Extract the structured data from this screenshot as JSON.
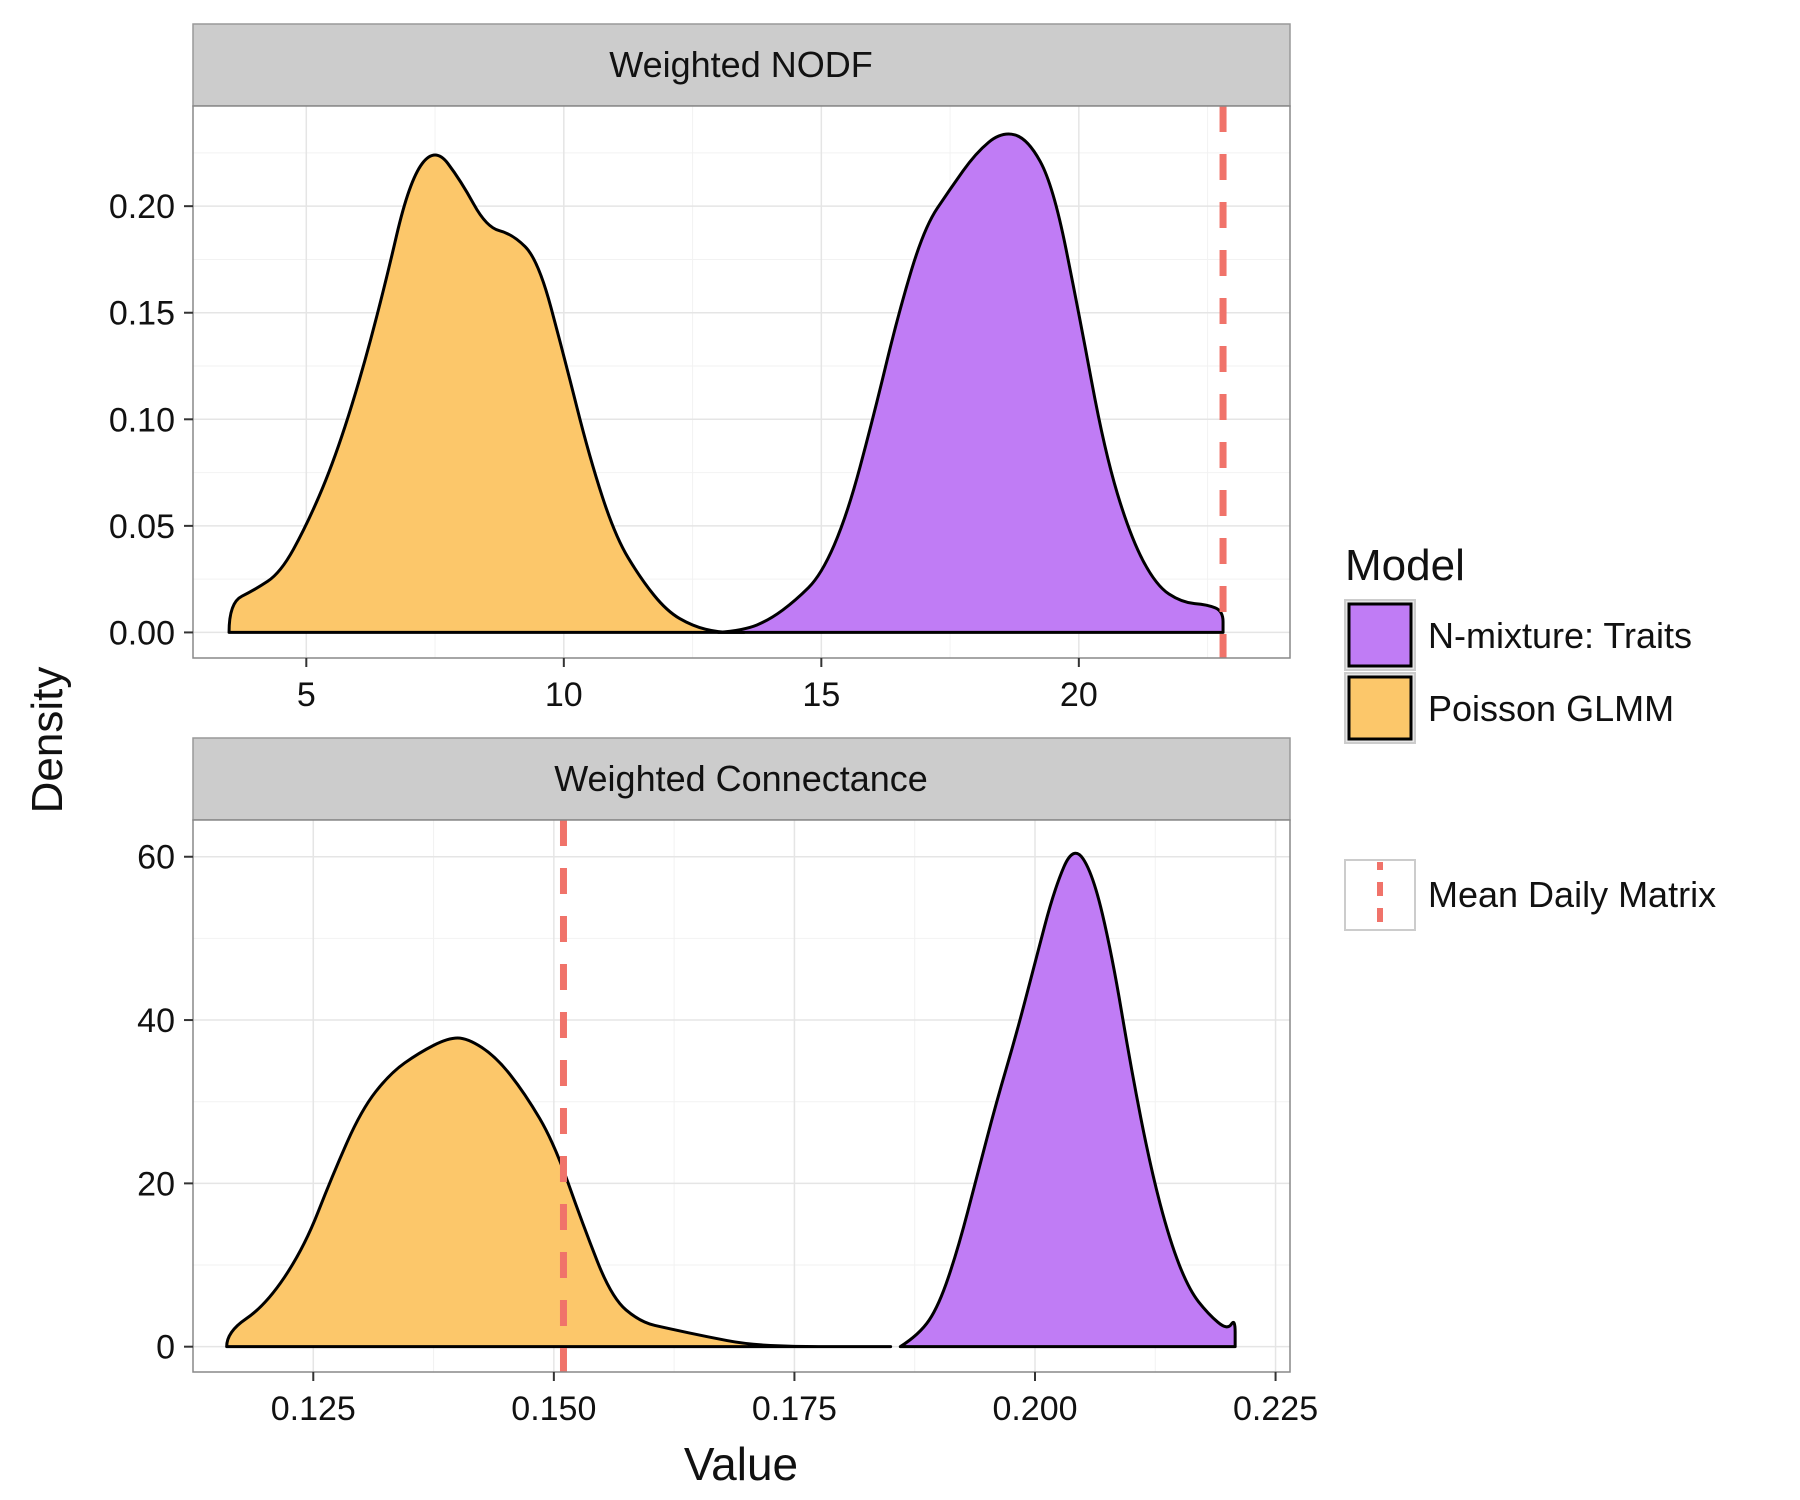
{
  "axis": {
    "xlabel": "Value",
    "ylabel": "Density"
  },
  "legend": {
    "title": "Model",
    "position": "right",
    "entries": [
      {
        "name": "N-mixture: Traits",
        "color": "#c07cf5"
      },
      {
        "name": "Poisson GLMM",
        "color": "#fcc76a"
      }
    ],
    "line_entry": {
      "name": "Mean Daily Matrix",
      "color": "#f0736a",
      "style": "dashed"
    }
  },
  "chart_data": [
    {
      "type": "area",
      "title": "Weighted NODF",
      "xlim": [
        2.8,
        24.1
      ],
      "ylim": [
        -0.012,
        0.247
      ],
      "x_ticks": [
        5,
        10,
        15,
        20
      ],
      "x_tick_labels": [
        "5",
        "10",
        "15",
        "20"
      ],
      "y_ticks": [
        0.0,
        0.05,
        0.1,
        0.15,
        0.2
      ],
      "y_tick_labels": [
        "0.00",
        "0.05",
        "0.10",
        "0.15",
        "0.20"
      ],
      "grid": true,
      "reference_line": {
        "name": "Mean Daily Matrix",
        "x": 22.8
      },
      "series": [
        {
          "name": "Poisson GLMM",
          "color": "#fcc76a",
          "x": [
            3.5,
            3.5,
            4.0,
            4.5,
            5.0,
            5.5,
            6.0,
            6.5,
            7.0,
            7.5,
            8.0,
            8.5,
            9.0,
            9.5,
            10.0,
            10.5,
            11.0,
            11.5,
            12.0,
            12.5,
            13.0,
            13.5
          ],
          "y": [
            0.0,
            0.014,
            0.02,
            0.028,
            0.05,
            0.078,
            0.115,
            0.16,
            0.212,
            0.228,
            0.212,
            0.19,
            0.187,
            0.175,
            0.13,
            0.082,
            0.045,
            0.025,
            0.01,
            0.003,
            0.0,
            0.0
          ]
        },
        {
          "name": "N-mixture: Traits",
          "color": "#c07cf5",
          "x": [
            13.0,
            13.5,
            14.0,
            14.5,
            15.0,
            15.5,
            16.0,
            16.5,
            17.0,
            17.5,
            18.0,
            18.5,
            19.0,
            19.5,
            20.0,
            20.5,
            21.0,
            21.5,
            22.0,
            22.5,
            22.8,
            22.8
          ],
          "y": [
            0.0,
            0.001,
            0.006,
            0.015,
            0.027,
            0.055,
            0.1,
            0.15,
            0.19,
            0.208,
            0.225,
            0.235,
            0.232,
            0.21,
            0.15,
            0.085,
            0.045,
            0.022,
            0.014,
            0.013,
            0.01,
            0.0
          ]
        }
      ]
    },
    {
      "type": "area",
      "title": "Weighted Connectance",
      "xlim": [
        0.1125,
        0.2265
      ],
      "ylim": [
        -3.1,
        64.5
      ],
      "x_ticks": [
        0.125,
        0.15,
        0.175,
        0.2,
        0.225
      ],
      "x_tick_labels": [
        "0.125",
        "0.150",
        "0.175",
        "0.200",
        "0.225"
      ],
      "y_ticks": [
        0,
        20,
        40,
        60
      ],
      "y_tick_labels": [
        "0",
        "20",
        "40",
        "60"
      ],
      "grid": true,
      "reference_line": {
        "name": "Mean Daily Matrix",
        "x": 0.151
      },
      "series": [
        {
          "name": "Poisson GLMM",
          "color": "#fcc76a",
          "x": [
            0.116,
            0.116,
            0.12,
            0.124,
            0.127,
            0.13,
            0.133,
            0.136,
            0.139,
            0.141,
            0.144,
            0.147,
            0.15,
            0.153,
            0.156,
            0.159,
            0.162,
            0.166,
            0.17,
            0.175,
            0.18,
            0.185
          ],
          "y": [
            0.0,
            1.8,
            5.0,
            12.0,
            21.0,
            29.0,
            33.5,
            36.0,
            37.8,
            37.8,
            35.5,
            31.0,
            25.0,
            15.0,
            6.0,
            3.0,
            2.2,
            1.2,
            0.3,
            0.0,
            0.0,
            0.0
          ]
        },
        {
          "name": "N-mixture: Traits",
          "color": "#c07cf5",
          "x": [
            0.186,
            0.188,
            0.19,
            0.192,
            0.194,
            0.196,
            0.198,
            0.2,
            0.202,
            0.204,
            0.206,
            0.208,
            0.21,
            0.212,
            0.214,
            0.216,
            0.218,
            0.22,
            0.2208,
            0.2208
          ],
          "y": [
            0.0,
            1.5,
            5.0,
            12.0,
            21.0,
            30.0,
            38.0,
            47.0,
            56.0,
            61.5,
            58.0,
            48.0,
            34.0,
            22.0,
            13.0,
            7.0,
            4.0,
            2.0,
            3.5,
            0.0
          ]
        }
      ]
    }
  ]
}
